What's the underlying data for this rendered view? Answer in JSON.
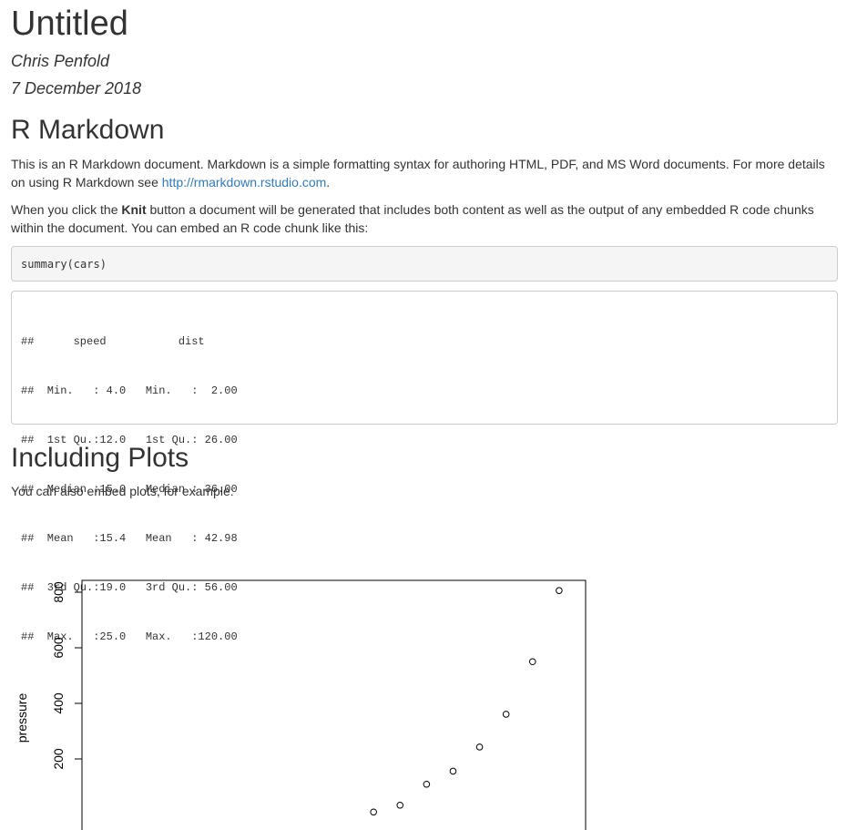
{
  "doc": {
    "title": "Untitled",
    "author": "Chris Penfold",
    "date": "7 December 2018"
  },
  "section1": {
    "heading": "R Markdown",
    "p1_text": "This is an R Markdown document. Markdown is a simple formatting syntax for authoring HTML, PDF, and MS Word documents. For more details on using R Markdown see ",
    "p1_link": "http://rmarkdown.rstudio.com",
    "p1_end": ".",
    "p2_pre": "When you click the ",
    "p2_bold": "Knit",
    "p2_post": " button a document will be generated that includes both content as well as the output of any embedded R code chunks within the document. You can embed an R code chunk like this:",
    "code": "summary(cars)",
    "output": [
      "##      speed           dist       ",
      "##  Min.   : 4.0   Min.   :  2.00  ",
      "##  1st Qu.:12.0   1st Qu.: 26.00  ",
      "##  Median :15.0   Median : 36.00  ",
      "##  Mean   :15.4   Mean   : 42.98  ",
      "##  3rd Qu.:19.0   3rd Qu.: 56.00  ",
      "##  Max.   :25.0   Max.   :120.00  "
    ]
  },
  "section2": {
    "heading": "Including Plots",
    "p": "You can also embed plots, for example:"
  },
  "chart_data": {
    "type": "scatter",
    "title": "",
    "xlabel": "",
    "ylabel": "pressure",
    "ylim": [
      0,
      840
    ],
    "xlim": [
      0,
      380
    ],
    "yticks": [
      200,
      400,
      600,
      800
    ],
    "ytick_labels": [
      "200",
      "400",
      "600",
      "800"
    ],
    "x": [
      220,
      240,
      260,
      280,
      300,
      320,
      340,
      360
    ],
    "y": [
      9,
      33.6,
      109,
      156,
      243,
      361,
      550,
      806
    ],
    "marker": "open-circle"
  }
}
